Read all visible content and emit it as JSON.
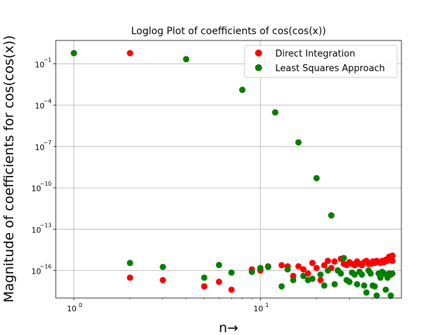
{
  "chart_data": {
    "type": "scatter",
    "title": "Loglog Plot of coefficients of cos(cos(x))",
    "xlabel": "n→",
    "ylabel": "Magnitude of coefficients for cos(cos(x))",
    "xscale": "log",
    "yscale": "log",
    "xlim": [
      0.8,
      57
    ],
    "ylim": [
      1e-18,
      5
    ],
    "grid": true,
    "legend_position": "top-right",
    "x_ticks": [
      {
        "value": 1,
        "base": "10",
        "exp": "0"
      },
      {
        "value": 10,
        "base": "10",
        "exp": "1"
      }
    ],
    "y_ticks": [
      {
        "value": 1e-16,
        "base": "10",
        "exp": "−16"
      },
      {
        "value": 1e-13,
        "base": "10",
        "exp": "−13"
      },
      {
        "value": 1e-10,
        "base": "10",
        "exp": "−10"
      },
      {
        "value": 1e-07,
        "base": "10",
        "exp": "−7"
      },
      {
        "value": 0.0001,
        "base": "10",
        "exp": "−4"
      },
      {
        "value": 0.1,
        "base": "10",
        "exp": "−1"
      }
    ],
    "series": [
      {
        "name": "Direct Integration",
        "color": "#ff0000",
        "points": [
          [
            1,
            0.6
          ],
          [
            2,
            0.6
          ],
          [
            4,
            0.22
          ],
          [
            8,
            0.0013
          ],
          [
            12,
            3e-05
          ],
          [
            16,
            2e-07
          ],
          [
            20,
            5e-10
          ],
          [
            24,
            1e-12
          ],
          [
            2,
            3e-17
          ],
          [
            3,
            2e-17
          ],
          [
            5,
            7e-18
          ],
          [
            6,
            1.5e-17
          ],
          [
            7,
            4e-18
          ],
          [
            9,
            1.2e-16
          ],
          [
            10,
            1e-16
          ],
          [
            11,
            2e-16
          ],
          [
            13,
            2.4e-16
          ],
          [
            14,
            2e-16
          ],
          [
            15,
            4e-17
          ],
          [
            16,
            2e-16
          ],
          [
            17,
            1.2e-16
          ],
          [
            18,
            6e-17
          ],
          [
            19,
            3.5e-16
          ],
          [
            20,
            1.5e-16
          ],
          [
            21,
            2e-17
          ],
          [
            22,
            2.4e-16
          ],
          [
            23,
            5e-16
          ],
          [
            24,
            1.5e-16
          ],
          [
            25,
            4.5e-16
          ],
          [
            26,
            1e-16
          ],
          [
            27,
            7e-16
          ],
          [
            28,
            3e-16
          ],
          [
            29,
            2.5e-16
          ],
          [
            30,
            4e-16
          ],
          [
            31,
            3e-16
          ],
          [
            32,
            2.4e-16
          ],
          [
            33,
            4.5e-16
          ],
          [
            34,
            3e-16
          ],
          [
            35,
            2.4e-16
          ],
          [
            36,
            4e-16
          ],
          [
            37,
            5e-16
          ],
          [
            38,
            3e-16
          ],
          [
            39,
            3e-16
          ],
          [
            40,
            4.5e-16
          ],
          [
            41,
            3.5e-16
          ],
          [
            42,
            5e-16
          ],
          [
            43,
            4e-16
          ],
          [
            44,
            3.5e-16
          ],
          [
            45,
            5e-16
          ],
          [
            46,
            4e-16
          ],
          [
            47,
            6e-16
          ],
          [
            48,
            5e-16
          ],
          [
            49,
            1e-15
          ],
          [
            50,
            5e-17
          ],
          [
            51,
            1.2e-15
          ],
          [
            51,
            5e-16
          ]
        ]
      },
      {
        "name": "Least Squares Approach",
        "color": "#008000",
        "points": [
          [
            1,
            0.6
          ],
          [
            2,
            3.5e-16
          ],
          [
            3,
            1.8e-16
          ],
          [
            4,
            0.22
          ],
          [
            5,
            3e-17
          ],
          [
            6,
            2.5e-16
          ],
          [
            7,
            7e-17
          ],
          [
            8,
            0.0013
          ],
          [
            9,
            8e-17
          ],
          [
            10,
            1.5e-16
          ],
          [
            11,
            1.8e-16
          ],
          [
            12,
            3e-05
          ],
          [
            13,
            7e-18
          ],
          [
            14,
            1.2e-16
          ],
          [
            15,
            2e-17
          ],
          [
            16,
            2e-07
          ],
          [
            17,
            4e-17
          ],
          [
            18,
            2e-17
          ],
          [
            19,
            2.5e-17
          ],
          [
            20,
            5e-10
          ],
          [
            21,
            5e-17
          ],
          [
            22,
            8e-18
          ],
          [
            23,
            1e-16
          ],
          [
            24,
            1e-12
          ],
          [
            25,
            1e-17
          ],
          [
            26,
            1e-16
          ],
          [
            27,
            6e-17
          ],
          [
            28,
            8e-16
          ],
          [
            29,
            2e-17
          ],
          [
            30,
            1.5e-17
          ],
          [
            31,
            7e-17
          ],
          [
            32,
            5e-17
          ],
          [
            33,
            1e-17
          ],
          [
            34,
            8e-17
          ],
          [
            35,
            5e-17
          ],
          [
            36,
            8e-18
          ],
          [
            37,
            2.5e-18
          ],
          [
            38,
            1e-16
          ],
          [
            39,
            6e-17
          ],
          [
            40,
            8e-18
          ],
          [
            41,
            7e-18
          ],
          [
            42,
            1.5e-18
          ],
          [
            43,
            6e-17
          ],
          [
            44,
            3e-17
          ],
          [
            45,
            8e-17
          ],
          [
            46,
            6e-17
          ],
          [
            47,
            4e-18
          ],
          [
            48,
            3e-17
          ],
          [
            49,
            6e-17
          ],
          [
            50,
            1.5e-18
          ],
          [
            51,
            6e-17
          ]
        ]
      }
    ]
  }
}
